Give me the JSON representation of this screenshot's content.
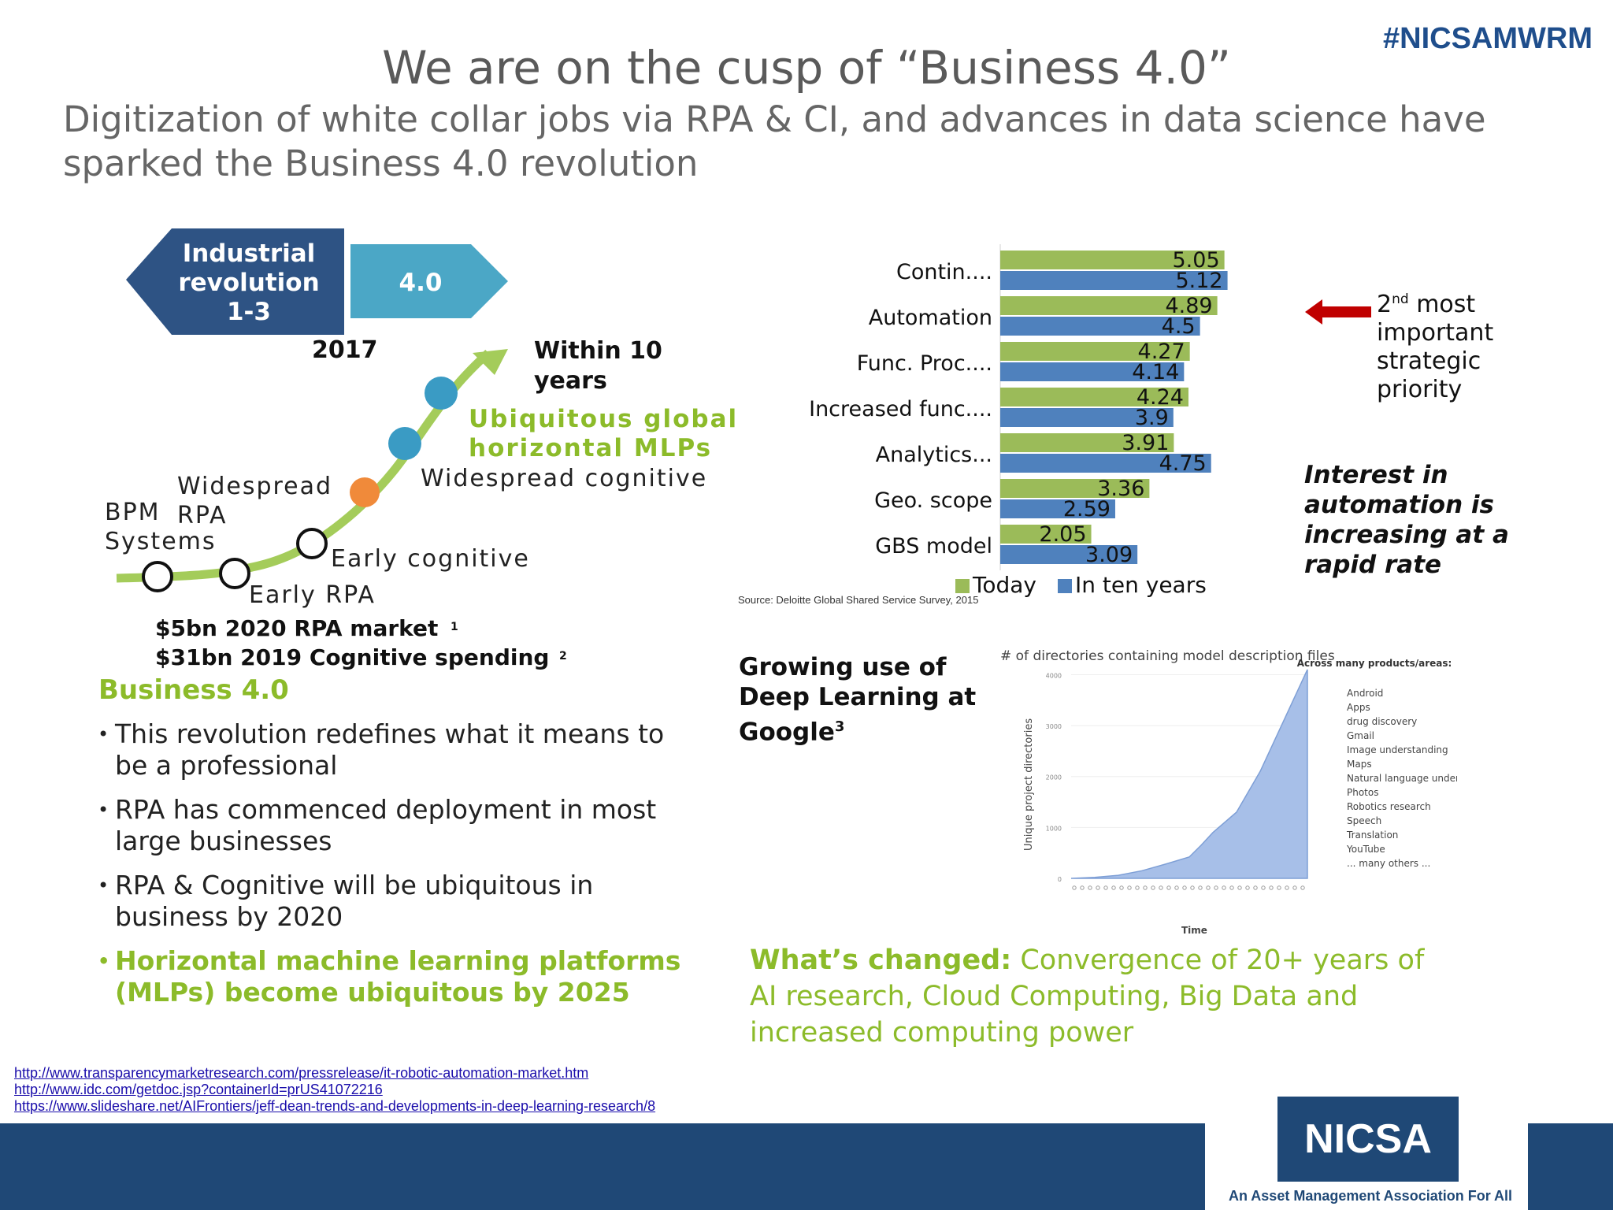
{
  "header": {
    "title": "We are on the cusp of “Business 4.0”",
    "hashtag": "#NICSAMWRM",
    "subtitle": "Digitization of white collar jobs via RPA & CI, and advances in data science have sparked the Business 4.0 revolution"
  },
  "timeline": {
    "industrial_label": [
      "Industrial",
      "revolution",
      "1-3"
    ],
    "four_label": "4.0",
    "year": "2017",
    "within_label": [
      "Within 10",
      "years"
    ],
    "ubiquitous_label": [
      "Ubiquitous global",
      "horizontal MLPs"
    ],
    "widespread_cognitive": "Widespread cognitive",
    "widespread_rpa": [
      "Widespread",
      "RPA"
    ],
    "bpm": [
      "BPM",
      "Systems"
    ],
    "early_cognitive": "Early cognitive",
    "early_rpa": "Early RPA",
    "market1": "$5bn 2020 RPA market",
    "market1_sup": "1",
    "market2": "$31bn 2019 Cognitive spending",
    "market2_sup": "2",
    "colors": {
      "dark": "#2e5384",
      "light": "#4ba7c6",
      "curve": "#a4cc5a",
      "orange": "#f08a3a",
      "blue_node": "#3a9bc4"
    }
  },
  "business": {
    "heading": "Business 4.0",
    "bullets": [
      "This revolution redefines what it means to be a professional",
      "RPA has commenced deployment in most large businesses",
      "RPA & Cognitive will be ubiquitous in business by 2020"
    ],
    "highlight_bullet": "Horizontal machine learning platforms (MLPs) become ubiquitous by 2025"
  },
  "chart_data": [
    {
      "type": "bar",
      "orientation": "horizontal",
      "categories": [
        "Contin....",
        "Automation",
        "Func. Proc....",
        "Increased func....",
        "Analytics...",
        "Geo. scope",
        "GBS model"
      ],
      "series": [
        {
          "name": "Today",
          "color": "#9bbb59",
          "values": [
            5.05,
            4.89,
            4.27,
            4.24,
            3.91,
            3.36,
            2.05
          ],
          "labels": [
            "5.05",
            "4.89",
            "4.27",
            "4.24",
            "3.91",
            "3.36",
            "2.05"
          ]
        },
        {
          "name": "In ten years",
          "color": "#4f81bd",
          "values": [
            5.12,
            4.5,
            4.14,
            3.9,
            4.75,
            2.59,
            3.09
          ],
          "labels": [
            "5.12",
            "4.5",
            "4.14",
            "3.9",
            "4.75",
            "2.59",
            "3.09"
          ]
        }
      ],
      "xlim": [
        0,
        5.5
      ],
      "source": "Source: Deloitte Global Shared Service Survey, 2015"
    },
    {
      "type": "area",
      "title": "# of directories containing model description files",
      "ylabel": "Unique project directories",
      "xlabel": "Time",
      "yticks": [
        "0",
        "1000",
        "2000",
        "3000",
        "4000"
      ],
      "x": [
        0,
        0.1,
        0.2,
        0.3,
        0.4,
        0.5,
        0.55,
        0.6,
        0.7,
        0.8,
        0.9,
        1.0
      ],
      "y": [
        0,
        20,
        60,
        150,
        280,
        420,
        650,
        900,
        1300,
        2100,
        3100,
        4100
      ],
      "color": "#a7bfe8",
      "legend_title": "Across many products/areas:",
      "legend_items": [
        "Android",
        "Apps",
        "drug discovery",
        "Gmail",
        "Image understanding",
        "Maps",
        "Natural language understanding",
        "Photos",
        "Robotics research",
        "Speech",
        "Translation",
        "YouTube",
        "... many others ..."
      ]
    }
  ],
  "annotations": {
    "priority_sup": "nd",
    "priority_num": "2",
    "priority_lines": [
      " most",
      "important",
      "strategic",
      "priority"
    ],
    "interest": [
      "Interest in",
      "automation is",
      "increasing at a",
      "rapid rate"
    ],
    "arrow_color": "#c00000",
    "deep_learning": [
      "Growing use of",
      "Deep Learning at",
      "Google"
    ],
    "deep_learning_sup": "3"
  },
  "changed": {
    "bold": "What’s changed:",
    "text": " Convergence of 20+ years of AI research, Cloud Computing, Big Data and increased computing power"
  },
  "links": [
    "http://www.transparencymarketresearch.com/pressrelease/it-robotic-automation-market.htm",
    "http://www.idc.com/getdoc.jsp?containerId=prUS41072216",
    "https://www.slideshare.net/AIFrontiers/jeff-dean-trends-and-developments-in-deep-learning-research/8"
  ],
  "footer": {
    "logo_text": "NICSA",
    "tagline": "An Asset Management Association For All"
  }
}
